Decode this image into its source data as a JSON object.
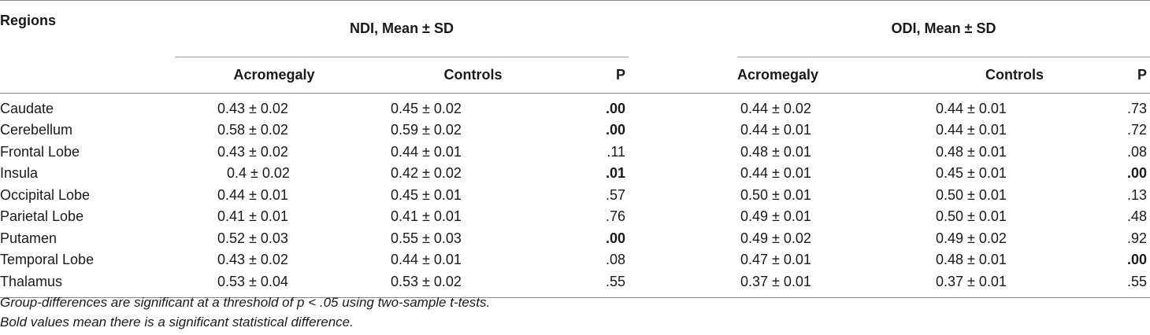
{
  "table": {
    "header": {
      "regions_label": "Regions",
      "group_ndi": "NDI, Mean ± SD",
      "group_odi": "ODI, Mean ± SD",
      "sub": {
        "acromegaly": "Acromegaly",
        "controls": "Controls",
        "p": "P"
      }
    },
    "rows": [
      {
        "region": "Caudate",
        "ndi_acro": "0.43 ± 0.02",
        "ndi_ctrl": "0.45 ± 0.02",
        "ndi_p": ".00",
        "ndi_sig": true,
        "odi_acro": "0.44 ± 0.02",
        "odi_ctrl": "0.44 ± 0.01",
        "odi_p": ".73",
        "odi_sig": false
      },
      {
        "region": "Cerebellum",
        "ndi_acro": "0.58 ± 0.02",
        "ndi_ctrl": "0.59 ± 0.02",
        "ndi_p": ".00",
        "ndi_sig": true,
        "odi_acro": "0.44 ± 0.01",
        "odi_ctrl": "0.44 ± 0.01",
        "odi_p": ".72",
        "odi_sig": false
      },
      {
        "region": "Frontal Lobe",
        "ndi_acro": "0.43 ± 0.02",
        "ndi_ctrl": "0.44 ± 0.01",
        "ndi_p": ".11",
        "ndi_sig": false,
        "odi_acro": "0.48 ± 0.01",
        "odi_ctrl": "0.48 ± 0.01",
        "odi_p": ".08",
        "odi_sig": false
      },
      {
        "region": "Insula",
        "ndi_acro": "0.4 ± 0.02",
        "ndi_ctrl": "0.42 ± 0.02",
        "ndi_p": ".01",
        "ndi_sig": true,
        "odi_acro": "0.44 ± 0.01",
        "odi_ctrl": "0.45 ± 0.01",
        "odi_p": ".00",
        "odi_sig": true
      },
      {
        "region": "Occipital Lobe",
        "ndi_acro": "0.44 ± 0.01",
        "ndi_ctrl": "0.45 ± 0.01",
        "ndi_p": ".57",
        "ndi_sig": false,
        "odi_acro": "0.50 ± 0.01",
        "odi_ctrl": "0.50 ± 0.01",
        "odi_p": ".13",
        "odi_sig": false
      },
      {
        "region": "Parietal Lobe",
        "ndi_acro": "0.41 ± 0.01",
        "ndi_ctrl": "0.41 ± 0.01",
        "ndi_p": ".76",
        "ndi_sig": false,
        "odi_acro": "0.49 ± 0.01",
        "odi_ctrl": "0.50 ± 0.01",
        "odi_p": ".48",
        "odi_sig": false
      },
      {
        "region": "Putamen",
        "ndi_acro": "0.52 ± 0.03",
        "ndi_ctrl": "0.55 ± 0.03",
        "ndi_p": ".00",
        "ndi_sig": true,
        "odi_acro": "0.49 ± 0.02",
        "odi_ctrl": "0.49 ± 0.02",
        "odi_p": ".92",
        "odi_sig": false
      },
      {
        "region": "Temporal Lobe",
        "ndi_acro": "0.43 ± 0.02",
        "ndi_ctrl": "0.44 ± 0.01",
        "ndi_p": ".08",
        "ndi_sig": false,
        "odi_acro": "0.47 ± 0.01",
        "odi_ctrl": "0.48 ± 0.01",
        "odi_p": ".00",
        "odi_sig": true
      },
      {
        "region": "Thalamus",
        "ndi_acro": "0.53 ± 0.04",
        "ndi_ctrl": "0.53 ± 0.02",
        "ndi_p": ".55",
        "ndi_sig": false,
        "odi_acro": "0.37 ± 0.01",
        "odi_ctrl": "0.37 ± 0.01",
        "odi_p": ".55",
        "odi_sig": false
      }
    ]
  },
  "notes": {
    "line1": "Group-differences are significant at a threshold of p < .05 using two-sample t-tests.",
    "line2": "Bold values mean there is a significant statistical difference."
  }
}
